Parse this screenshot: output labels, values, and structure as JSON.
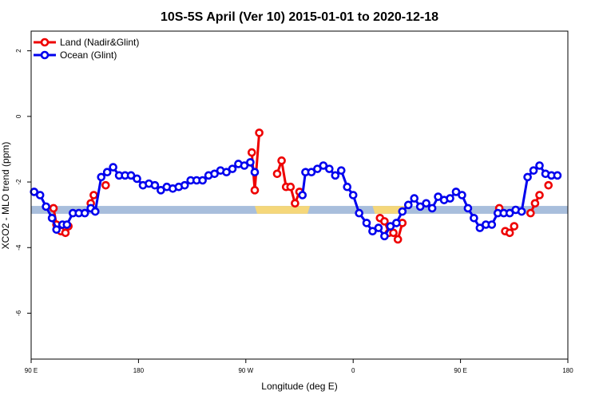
{
  "chart_data": {
    "type": "line",
    "title": "10S-5S April (Ver 10)   2015-01-01 to 2020-12-18",
    "xlabel": "Longitude (deg E)",
    "ylabel": "XCO2 - MLO trend (ppm)",
    "xlim": [
      90,
      450
    ],
    "ylim": [
      -7.4,
      2.6
    ],
    "xticks": [
      {
        "value": 90,
        "label": "90 E"
      },
      {
        "value": 162,
        "label": "180"
      },
      {
        "value": 234,
        "label": "90 W"
      },
      {
        "value": 306,
        "label": "0"
      },
      {
        "value": 378,
        "label": "90 E"
      },
      {
        "value": 450,
        "label": "180"
      }
    ],
    "yticks": [
      {
        "value": 2,
        "label": "2"
      },
      {
        "value": 0,
        "label": "0"
      },
      {
        "value": -2,
        "label": "-2"
      },
      {
        "value": -4,
        "label": "-4"
      },
      {
        "value": -6,
        "label": "-6"
      }
    ],
    "legend_position": "top-left",
    "band": {
      "y_center": -2.85,
      "y_half_width": 0.12,
      "color": "#a8bedc",
      "highlight_color": "#f5d77a",
      "highlights": [
        [
          240,
          277
        ],
        [
          319,
          342
        ]
      ]
    },
    "series": [
      {
        "name": "Land (Nadir&Glint)",
        "color": "#ee0000",
        "segments": [
          [
            [
              105,
              -2.8
            ],
            [
              107,
              -3.3
            ],
            [
              110,
              -3.5
            ],
            [
              113,
              -3.55
            ],
            [
              115,
              -3.35
            ]
          ],
          [
            [
              130,
              -2.65
            ],
            [
              132,
              -2.4
            ]
          ],
          [
            [
              140,
              -2.1
            ]
          ],
          [
            [
              238,
              -1.1
            ],
            [
              240,
              -2.25
            ],
            [
              243,
              -0.5
            ]
          ],
          [
            [
              255,
              -1.75
            ],
            [
              258,
              -1.35
            ],
            [
              261,
              -2.15
            ],
            [
              264,
              -2.15
            ],
            [
              267,
              -2.65
            ],
            [
              270,
              -2.3
            ]
          ],
          [
            [
              324,
              -3.1
            ],
            [
              327,
              -3.2
            ],
            [
              330,
              -3.55
            ],
            [
              333,
              -3.55
            ],
            [
              336,
              -3.75
            ],
            [
              339,
              -3.25
            ]
          ],
          [
            [
              404,
              -2.8
            ]
          ],
          [
            [
              408,
              -3.5
            ],
            [
              411,
              -3.55
            ],
            [
              414,
              -3.35
            ]
          ],
          [
            [
              425,
              -2.95
            ],
            [
              428,
              -2.65
            ],
            [
              431,
              -2.4
            ]
          ],
          [
            [
              437,
              -2.1
            ]
          ]
        ]
      },
      {
        "name": "Ocean (Glint)",
        "color": "#0000ee",
        "segments": [
          [
            [
              92,
              -2.3
            ],
            [
              96,
              -2.4
            ],
            [
              100,
              -2.75
            ],
            [
              104,
              -3.1
            ],
            [
              107,
              -3.45
            ],
            [
              111,
              -3.3
            ],
            [
              114,
              -3.3
            ],
            [
              118,
              -2.95
            ],
            [
              122,
              -2.95
            ],
            [
              126,
              -2.95
            ],
            [
              130,
              -2.8
            ],
            [
              133,
              -2.9
            ],
            [
              137,
              -1.85
            ],
            [
              141,
              -1.7
            ],
            [
              145,
              -1.55
            ],
            [
              149,
              -1.8
            ],
            [
              153,
              -1.8
            ],
            [
              157,
              -1.8
            ],
            [
              161,
              -1.9
            ],
            [
              165,
              -2.1
            ],
            [
              169,
              -2.05
            ],
            [
              173,
              -2.1
            ],
            [
              177,
              -2.25
            ],
            [
              181,
              -2.15
            ],
            [
              185,
              -2.2
            ],
            [
              189,
              -2.15
            ],
            [
              193,
              -2.1
            ],
            [
              197,
              -1.95
            ],
            [
              201,
              -1.95
            ],
            [
              205,
              -1.95
            ],
            [
              209,
              -1.8
            ],
            [
              213,
              -1.75
            ],
            [
              217,
              -1.65
            ],
            [
              221,
              -1.7
            ],
            [
              225,
              -1.6
            ],
            [
              229,
              -1.45
            ],
            [
              233,
              -1.5
            ],
            [
              237,
              -1.4
            ],
            [
              240,
              -1.7
            ]
          ],
          [
            [
              272,
              -2.4
            ],
            [
              274,
              -1.7
            ],
            [
              278,
              -1.7
            ],
            [
              282,
              -1.6
            ],
            [
              286,
              -1.5
            ],
            [
              290,
              -1.6
            ],
            [
              294,
              -1.8
            ],
            [
              298,
              -1.65
            ],
            [
              302,
              -2.15
            ],
            [
              306,
              -2.4
            ],
            [
              310,
              -2.95
            ],
            [
              315,
              -3.25
            ],
            [
              319,
              -3.5
            ],
            [
              323,
              -3.4
            ],
            [
              327,
              -3.65
            ],
            [
              331,
              -3.35
            ],
            [
              335,
              -3.25
            ],
            [
              339,
              -2.9
            ],
            [
              343,
              -2.7
            ],
            [
              347,
              -2.5
            ],
            [
              351,
              -2.75
            ],
            [
              355,
              -2.65
            ],
            [
              359,
              -2.8
            ],
            [
              363,
              -2.45
            ],
            [
              367,
              -2.55
            ],
            [
              371,
              -2.5
            ],
            [
              375,
              -2.3
            ],
            [
              379,
              -2.4
            ],
            [
              383,
              -2.8
            ],
            [
              387,
              -3.1
            ],
            [
              391,
              -3.4
            ],
            [
              395,
              -3.3
            ],
            [
              399,
              -3.3
            ],
            [
              403,
              -2.95
            ],
            [
              407,
              -2.95
            ],
            [
              411,
              -2.95
            ],
            [
              415,
              -2.85
            ],
            [
              419,
              -2.9
            ],
            [
              423,
              -1.85
            ],
            [
              427,
              -1.65
            ],
            [
              431,
              -1.5
            ],
            [
              435,
              -1.75
            ],
            [
              439,
              -1.8
            ],
            [
              443,
              -1.8
            ]
          ]
        ]
      }
    ]
  }
}
